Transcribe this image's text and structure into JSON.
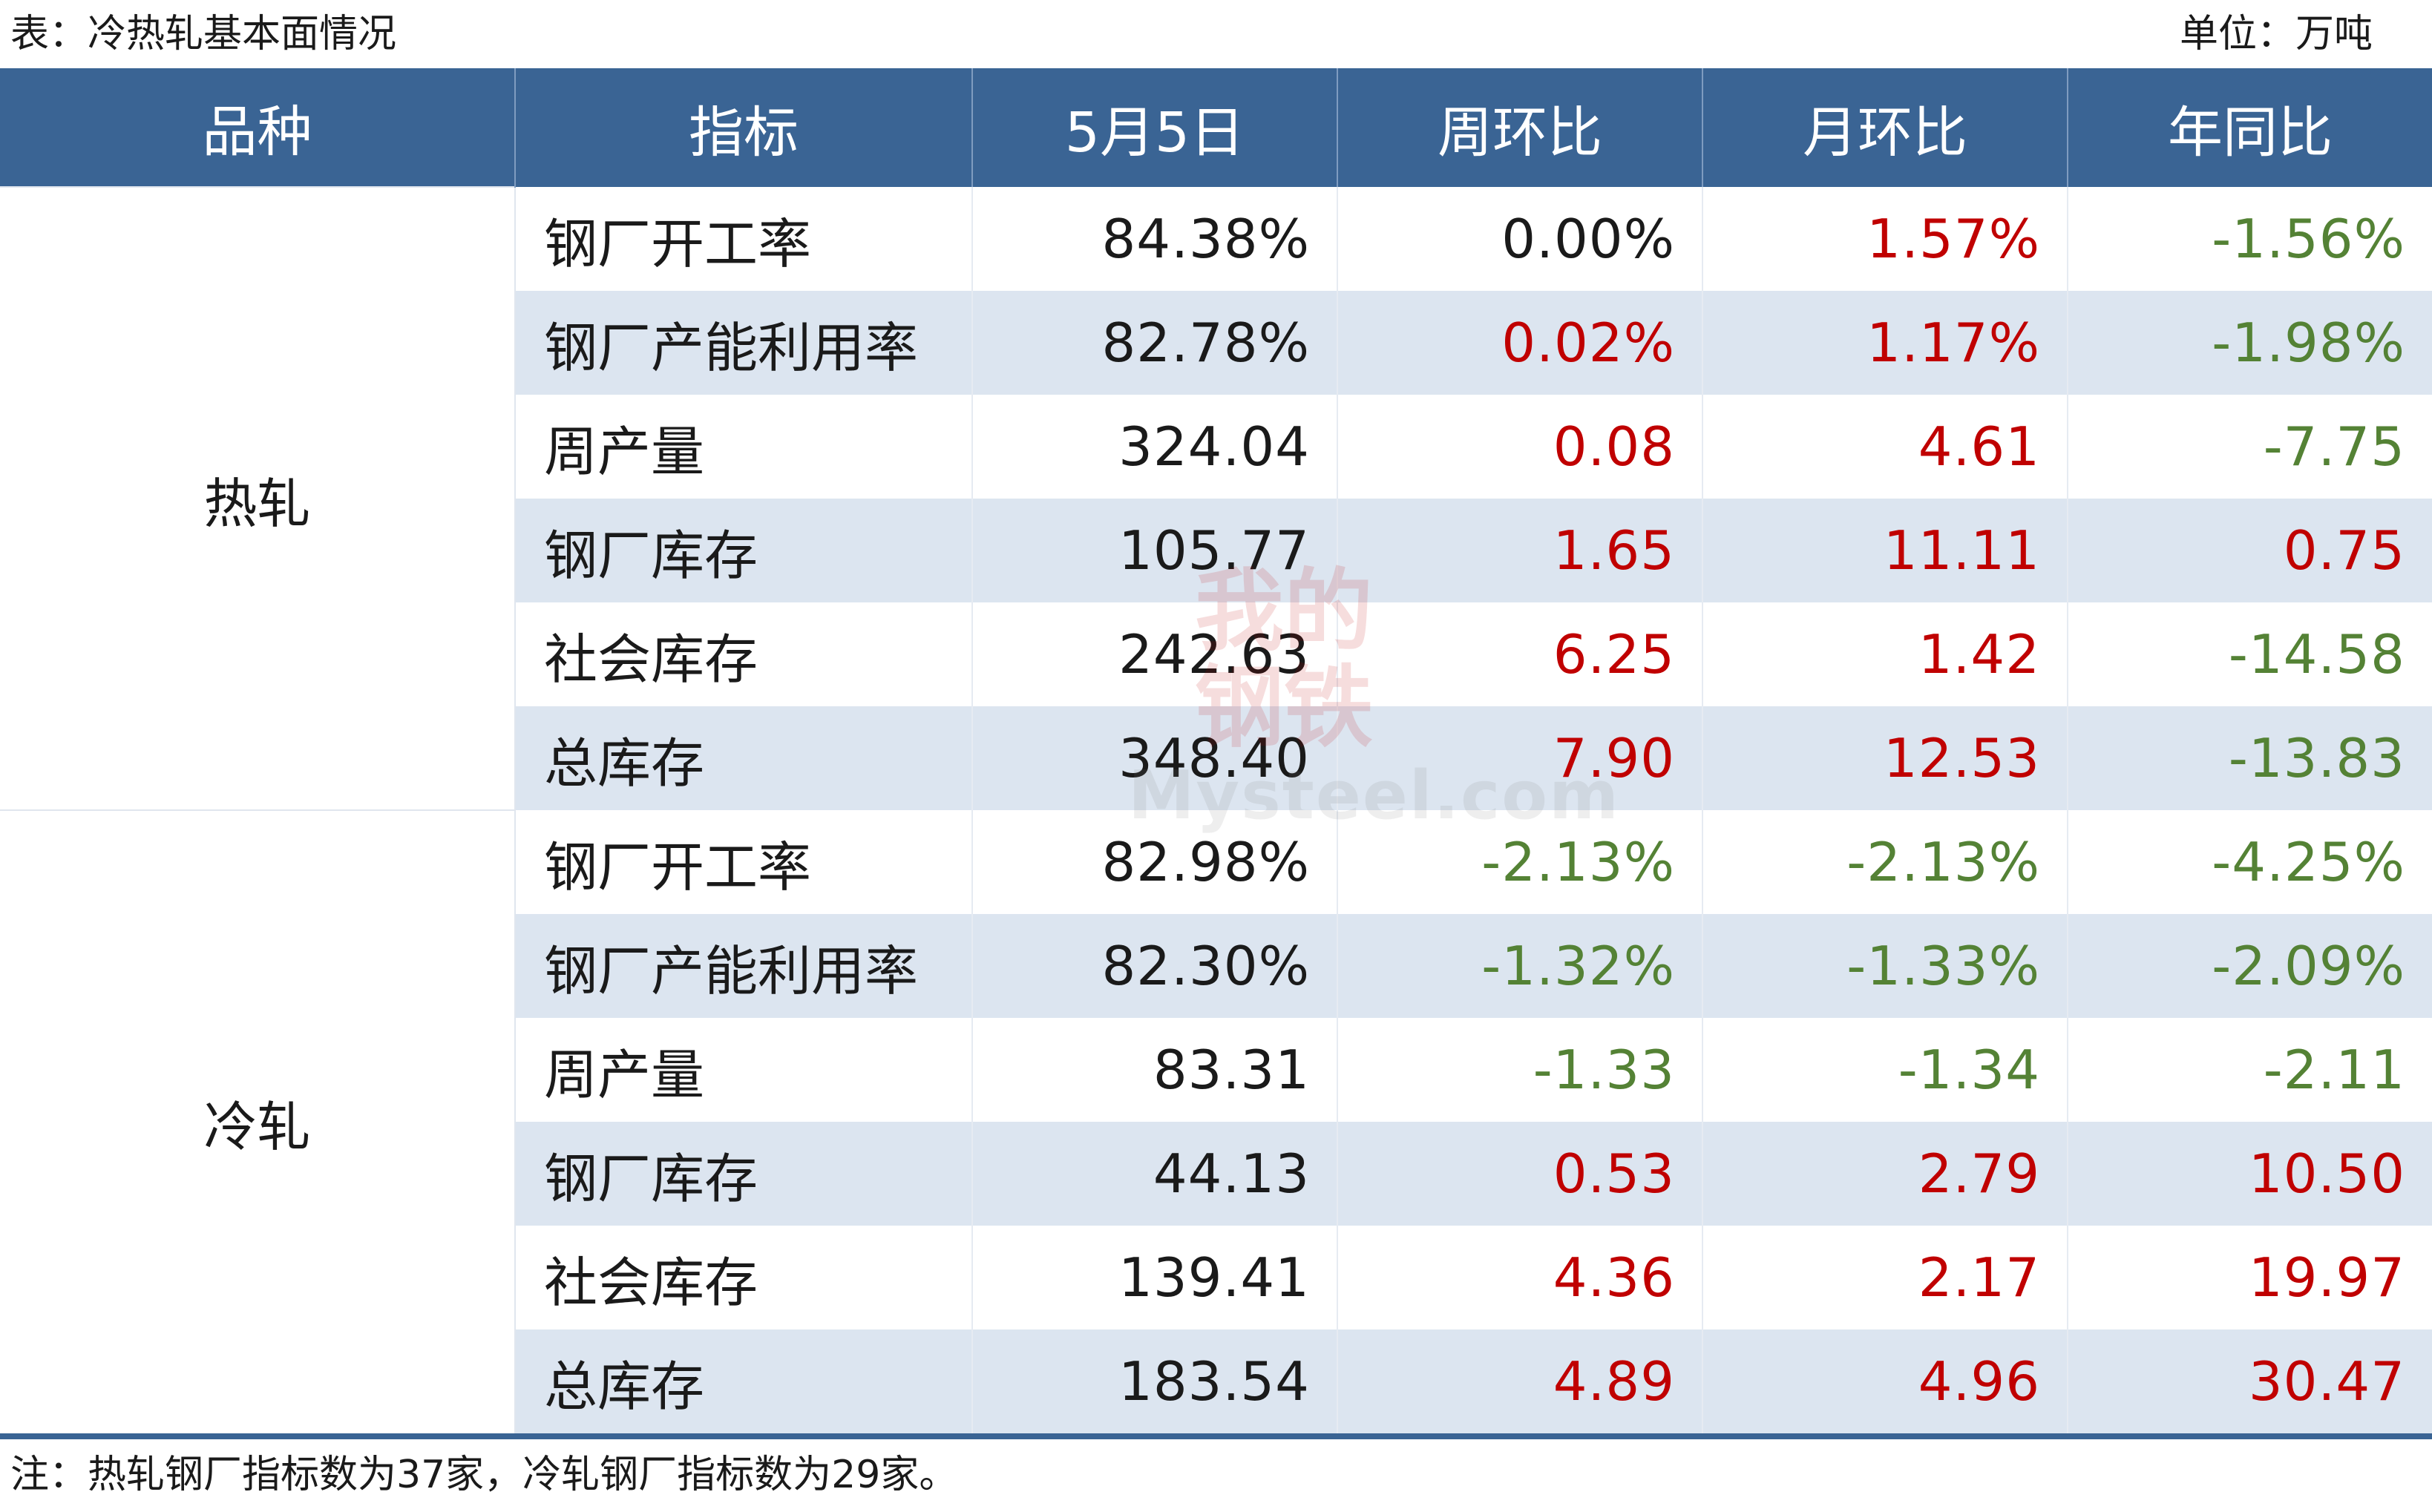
{
  "caption": {
    "title": "表：冷热轧基本面情况",
    "unit": "单位：万吨"
  },
  "headers": [
    "品种",
    "指标",
    "5月5日",
    "周环比",
    "月环比",
    "年同比"
  ],
  "groups": [
    {
      "name": "热轧",
      "rows": [
        {
          "indicator": "钢厂开工率",
          "value": "84.38%",
          "wow": "0.00%",
          "mom": "1.57%",
          "yoy": "-1.56%",
          "wow_dir": "flat",
          "mom_dir": "up",
          "yoy_dir": "down"
        },
        {
          "indicator": "钢厂产能利用率",
          "value": "82.78%",
          "wow": "0.02%",
          "mom": "1.17%",
          "yoy": "-1.98%",
          "wow_dir": "up",
          "mom_dir": "up",
          "yoy_dir": "down"
        },
        {
          "indicator": "周产量",
          "value": "324.04",
          "wow": "0.08",
          "mom": "4.61",
          "yoy": "-7.75",
          "wow_dir": "up",
          "mom_dir": "up",
          "yoy_dir": "down"
        },
        {
          "indicator": "钢厂库存",
          "value": "105.77",
          "wow": "1.65",
          "mom": "11.11",
          "yoy": "0.75",
          "wow_dir": "up",
          "mom_dir": "up",
          "yoy_dir": "up"
        },
        {
          "indicator": "社会库存",
          "value": "242.63",
          "wow": "6.25",
          "mom": "1.42",
          "yoy": "-14.58",
          "wow_dir": "up",
          "mom_dir": "up",
          "yoy_dir": "down"
        },
        {
          "indicator": "总库存",
          "value": "348.40",
          "wow": "7.90",
          "mom": "12.53",
          "yoy": "-13.83",
          "wow_dir": "up",
          "mom_dir": "up",
          "yoy_dir": "down"
        }
      ]
    },
    {
      "name": "冷轧",
      "rows": [
        {
          "indicator": "钢厂开工率",
          "value": "82.98%",
          "wow": "-2.13%",
          "mom": "-2.13%",
          "yoy": "-4.25%",
          "wow_dir": "down",
          "mom_dir": "down",
          "yoy_dir": "down"
        },
        {
          "indicator": "钢厂产能利用率",
          "value": "82.30%",
          "wow": "-1.32%",
          "mom": "-1.33%",
          "yoy": "-2.09%",
          "wow_dir": "down",
          "mom_dir": "down",
          "yoy_dir": "down"
        },
        {
          "indicator": "周产量",
          "value": "83.31",
          "wow": "-1.33",
          "mom": "-1.34",
          "yoy": "-2.11",
          "wow_dir": "down",
          "mom_dir": "down",
          "yoy_dir": "down"
        },
        {
          "indicator": "钢厂库存",
          "value": "44.13",
          "wow": "0.53",
          "mom": "2.79",
          "yoy": "10.50",
          "wow_dir": "up",
          "mom_dir": "up",
          "yoy_dir": "up"
        },
        {
          "indicator": "社会库存",
          "value": "139.41",
          "wow": "4.36",
          "mom": "2.17",
          "yoy": "19.97",
          "wow_dir": "up",
          "mom_dir": "up",
          "yoy_dir": "up"
        },
        {
          "indicator": "总库存",
          "value": "183.54",
          "wow": "4.89",
          "mom": "4.96",
          "yoy": "30.47",
          "wow_dir": "up",
          "mom_dir": "up",
          "yoy_dir": "up"
        }
      ]
    }
  ],
  "note": "注：热轧钢厂指标数为37家，冷轧钢厂指标数为29家。",
  "watermark": {
    "cn": "我的钢铁",
    "en": "Mysteel.com"
  },
  "colors": {
    "header_bg": "#3a6494",
    "shade_row": "#dce5f0",
    "up": "#c00000",
    "down": "#548235"
  }
}
